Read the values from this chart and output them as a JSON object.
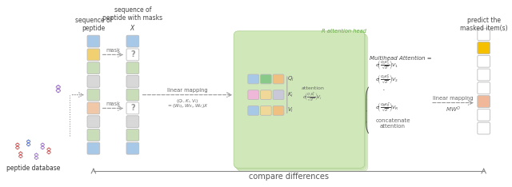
{
  "background": "#ffffff",
  "seq1_colors": [
    "#a8c8e8",
    "#f0d070",
    "#c8ddb8",
    "#d8d8d8",
    "#c8ddb8",
    "#f0c8a8",
    "#d8d8d8",
    "#c8ddb8",
    "#a8c8e8"
  ],
  "mask_idx": [
    1,
    5
  ],
  "qkv_rows": [
    {
      "label": "$Q_i$",
      "colors": [
        "#a8c8e8",
        "#88c888",
        "#f0c080"
      ]
    },
    {
      "label": "$K_i$",
      "colors": [
        "#f0b8d8",
        "#f0d898",
        "#c8c8d8"
      ]
    },
    {
      "label": "$V_i$",
      "colors": [
        "#a8c8e8",
        "#f0d898",
        "#f0c080"
      ]
    }
  ],
  "out_colors": [
    "#ffffff",
    "#f5c000",
    "#ffffff",
    "#ffffff",
    "#ffffff",
    "#f0b898",
    "#ffffff",
    "#ffffff"
  ],
  "green_bg": "#d0e8b8",
  "green_edge": "#a8cc88",
  "compare_text": "compare differences",
  "seq_label1": "sequence of\npeptide",
  "seq_label2": "sequence of\npeptide with masks\n$X$",
  "out_label": "predict the\nmasked item(s)",
  "lm_label1": "linear mapping",
  "lm_label2": "$(Q_i, K_i, V_i)$",
  "lm_label3": "$= (W_{Q_i}, W_{K_i}, W_{V_i})X$",
  "lm_label4": "linear mapping",
  "lm_label5": "$MW^O$",
  "att_label": "attention",
  "att_formula": "$\\sigma\\!\\left(\\frac{Q_i K_i^T}{\\sqrt{d}}\\right)\\!V_i$",
  "r_head_label": "R attention head",
  "mha_title": "Multihead Attention =",
  "mha_lines": [
    "$\\sigma\\!\\left(\\frac{Q_1 K_1^T}{\\sqrt{d}}\\right)\\!V_1$",
    "$\\sigma\\!\\left(\\frac{Q_2 K_2^T}{\\sqrt{d}}\\right)\\!V_2$",
    ".",
    "$\\sigma\\!\\left(\\frac{Q_R K_R^T}{\\sqrt{d}}\\right)\\!V_R$"
  ],
  "concat_label": "concatenate\nattention",
  "mask_label": "mask",
  "db_label": "peptide database"
}
